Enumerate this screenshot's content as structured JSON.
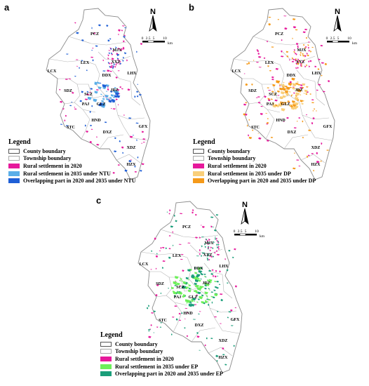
{
  "panels": [
    {
      "letter": "a",
      "legend": {
        "title": "Legend",
        "items": [
          {
            "label": "County boundary",
            "color": "#ffffff",
            "style": "outline-dark"
          },
          {
            "label": "Township boundary",
            "color": "#ffffff",
            "style": "outline-light"
          },
          {
            "label": "Rural settlement in 2020",
            "color": "#e6199b"
          },
          {
            "label": "Rural settlement in 2035 under NTU",
            "color": "#5aaee8"
          },
          {
            "label": "Overlapping part in 2020 and 2035 under NTU",
            "color": "#1f5fd6"
          }
        ]
      },
      "colors": {
        "new": "#5aaee8",
        "overlap": "#1f5fd6"
      }
    },
    {
      "letter": "b",
      "legend": {
        "title": "Legend",
        "items": [
          {
            "label": "County boundary",
            "color": "#ffffff",
            "style": "outline-dark"
          },
          {
            "label": "Township boundary",
            "color": "#ffffff",
            "style": "outline-light"
          },
          {
            "label": "Rural settlement in 2020",
            "color": "#e6199b"
          },
          {
            "label": "Rural settlement in 2035 under DP",
            "color": "#f9cf7a"
          },
          {
            "label": "Overlapping part in 2020 and 2035 under DP",
            "color": "#f59a1a"
          }
        ]
      },
      "colors": {
        "new": "#f9cf7a",
        "overlap": "#f59a1a"
      }
    },
    {
      "letter": "c",
      "legend": {
        "title": "Legend",
        "items": [
          {
            "label": "County boundary",
            "color": "#ffffff",
            "style": "outline-dark"
          },
          {
            "label": "Township boundary",
            "color": "#ffffff",
            "style": "outline-light"
          },
          {
            "label": "Rural settlement in 2020",
            "color": "#e6199b"
          },
          {
            "label": "Rural settlement in 2035 under EP",
            "color": "#6df05a"
          },
          {
            "label": "Overlapping part in 2020 and 2035 under EP",
            "color": "#1a9e7a"
          }
        ]
      },
      "colors": {
        "new": "#6df05a",
        "overlap": "#1a9e7a"
      }
    }
  ],
  "map": {
    "north_label": "N",
    "scale_ticks": [
      "0",
      "2.5",
      "5",
      "10"
    ],
    "scale_unit": "km",
    "townships": [
      "PCZ",
      "MJX",
      "XXZ",
      "LCX",
      "LEX",
      "LHX",
      "DDX",
      "SDZ",
      "JDZ",
      "SCZ",
      "PAJ",
      "GLZ",
      "HND",
      "STC",
      "DXZ",
      "GFX",
      "XDZ",
      "HZX"
    ],
    "county_boundary_color": "#8a8a8a",
    "township_boundary_color": "#b5b5b5",
    "settlement_2020_color": "#e6199b"
  }
}
